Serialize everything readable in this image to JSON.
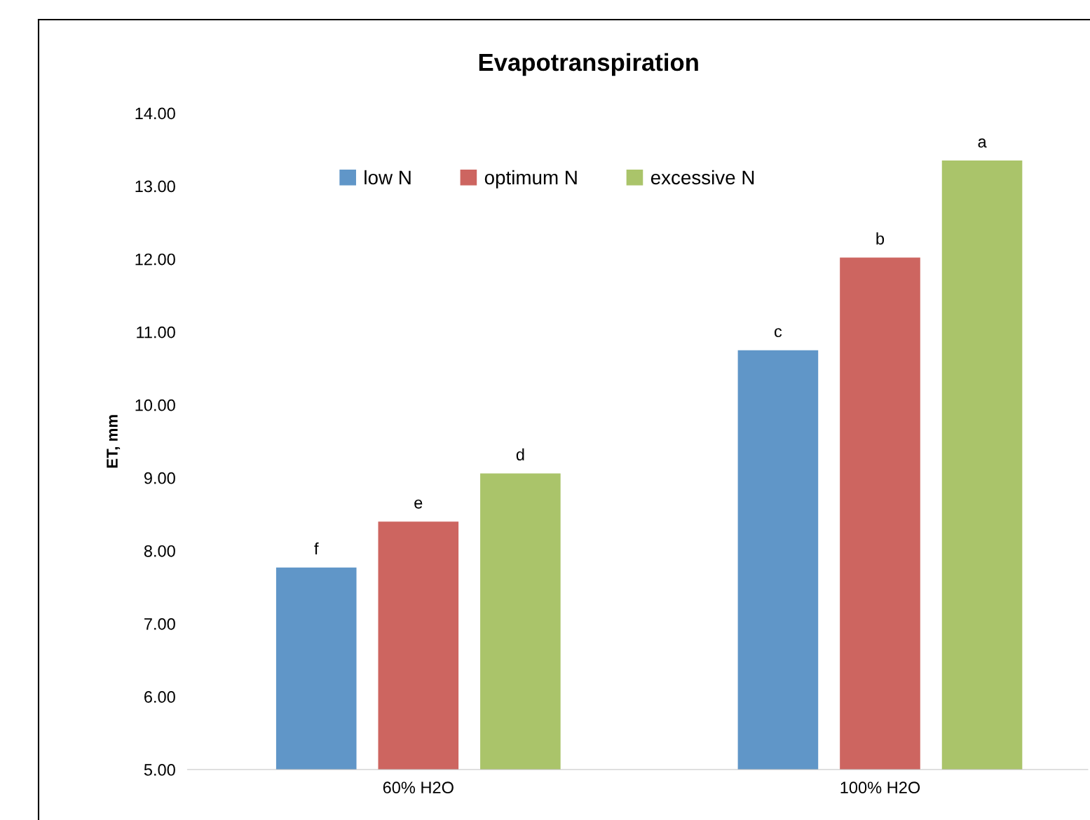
{
  "chart_data": {
    "type": "bar",
    "title": "Evapotranspiration",
    "ylabel": "ET, mm",
    "categories": [
      "60% H2O",
      "100% H2O"
    ],
    "series": [
      {
        "name": "low N",
        "color": "#6096c8",
        "values": [
          7.77,
          10.75
        ],
        "value_labels": [
          "f",
          "c"
        ]
      },
      {
        "name": "optimum N",
        "color": "#cd6560",
        "values": [
          8.4,
          12.02
        ],
        "value_labels": [
          "e",
          "b"
        ]
      },
      {
        "name": "excessive N",
        "color": "#aac46a",
        "values": [
          9.06,
          13.35
        ],
        "value_labels": [
          "d",
          "a"
        ]
      }
    ],
    "ylim": [
      5,
      14
    ],
    "yticks": [
      {
        "value": 5,
        "label": "5.00"
      },
      {
        "value": 6,
        "label": "6.00"
      },
      {
        "value": 7,
        "label": "7.00"
      },
      {
        "value": 8,
        "label": "8.00"
      },
      {
        "value": 9,
        "label": "9.00"
      },
      {
        "value": 10,
        "label": "10.00"
      },
      {
        "value": 11,
        "label": "11.00"
      },
      {
        "value": 12,
        "label": "12.00"
      },
      {
        "value": 13,
        "label": "13.00"
      },
      {
        "value": 14,
        "label": "14.00"
      }
    ],
    "grid": false,
    "legend": "top"
  }
}
